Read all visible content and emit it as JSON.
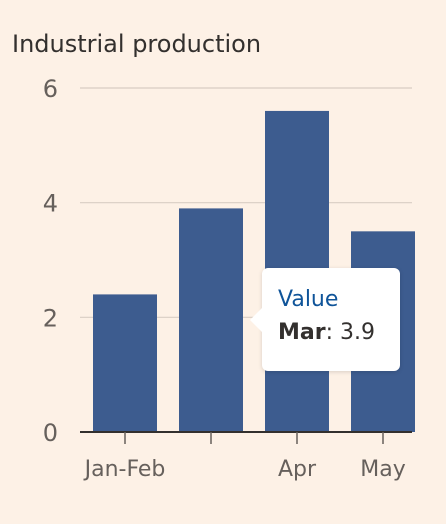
{
  "chart_data": {
    "type": "bar",
    "title": "Industrial production",
    "categories": [
      "Jan-Feb",
      "Mar",
      "Apr",
      "May"
    ],
    "x_tick_labels": [
      "Jan-Feb",
      "",
      "Apr",
      "May"
    ],
    "values": [
      2.4,
      3.9,
      5.6,
      3.5
    ],
    "ylim": [
      0,
      6
    ],
    "yticks": [
      0,
      2,
      4,
      6
    ],
    "bar_color": "#3d5c8f",
    "grid": true,
    "tooltip": {
      "title": "Value",
      "category": "Mar",
      "separator": ":",
      "value": "3.9"
    }
  }
}
